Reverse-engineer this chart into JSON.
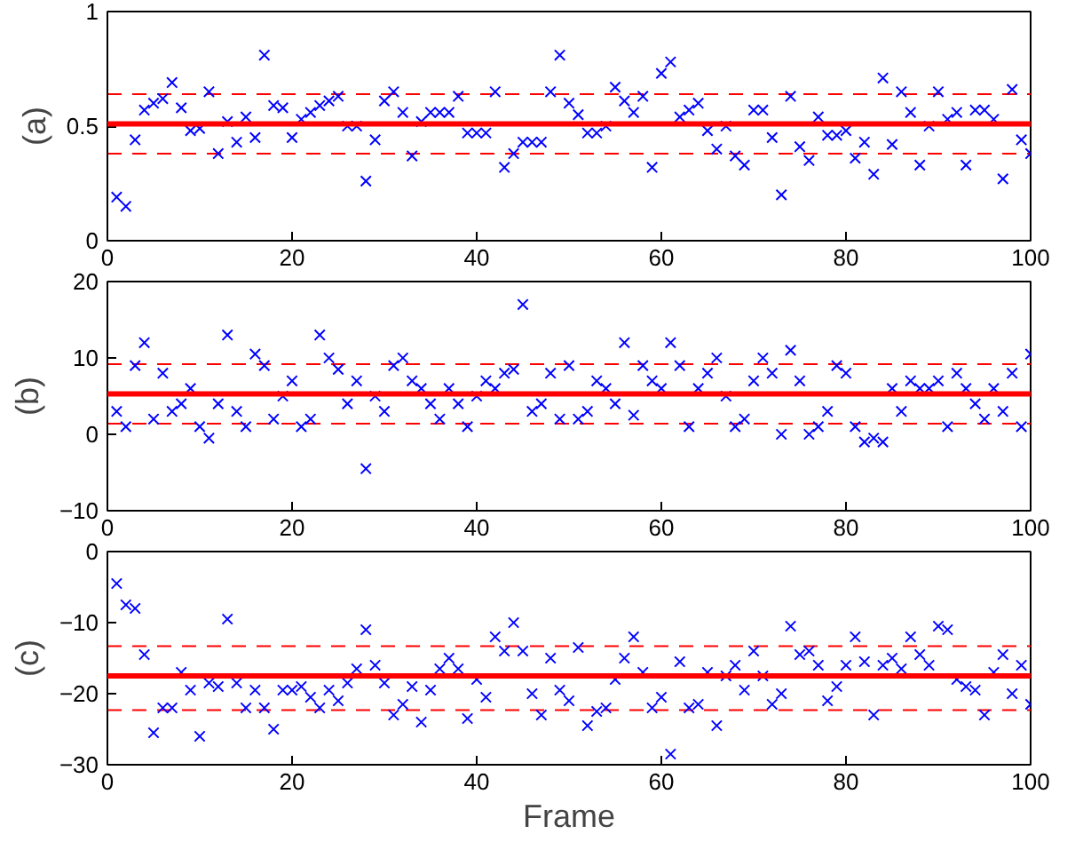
{
  "chart_data": [
    {
      "type": "scatter",
      "ylabel": "(a)",
      "xlim": [
        0,
        100
      ],
      "xticks": [
        0,
        20,
        40,
        60,
        80,
        100
      ],
      "ylim": [
        0,
        1
      ],
      "yticks": [
        0,
        0.5,
        1
      ],
      "grid": false,
      "marker": "cross",
      "x": [
        1,
        2,
        3,
        4,
        5,
        6,
        7,
        8,
        9,
        10,
        11,
        12,
        13,
        14,
        15,
        16,
        17,
        18,
        19,
        20,
        21,
        22,
        23,
        24,
        25,
        26,
        27,
        28,
        29,
        30,
        31,
        32,
        33,
        34,
        35,
        36,
        37,
        38,
        39,
        40,
        41,
        42,
        43,
        44,
        45,
        46,
        47,
        48,
        49,
        50,
        51,
        52,
        53,
        54,
        55,
        56,
        57,
        58,
        59,
        60,
        61,
        62,
        63,
        64,
        65,
        66,
        67,
        68,
        69,
        70,
        71,
        72,
        73,
        74,
        75,
        76,
        77,
        78,
        79,
        80,
        81,
        82,
        83,
        84,
        85,
        86,
        87,
        88,
        89,
        90,
        91,
        92,
        93,
        94,
        95,
        96,
        97,
        98,
        99,
        100
      ],
      "series": [
        {
          "color": "#0000ff",
          "values": [
            0.19,
            0.15,
            0.44,
            0.57,
            0.6,
            0.62,
            0.69,
            0.58,
            0.48,
            0.49,
            0.65,
            0.38,
            0.52,
            0.43,
            0.54,
            0.45,
            0.81,
            0.59,
            0.58,
            0.45,
            0.53,
            0.56,
            0.59,
            0.61,
            0.63,
            0.5,
            0.5,
            0.26,
            0.44,
            0.61,
            0.65,
            0.56,
            0.37,
            0.52,
            0.56,
            0.56,
            0.56,
            0.63,
            0.47,
            0.47,
            0.47,
            0.65,
            0.32,
            0.38,
            0.43,
            0.43,
            0.43,
            0.65,
            0.81,
            0.6,
            0.55,
            0.47,
            0.47,
            0.5,
            0.67,
            0.61,
            0.56,
            0.63,
            0.32,
            0.73,
            0.78,
            0.54,
            0.57,
            0.6,
            0.48,
            0.4,
            0.5,
            0.37,
            0.33,
            0.57,
            0.57,
            0.45,
            0.2,
            0.63,
            0.41,
            0.35,
            0.54,
            0.46,
            0.46,
            0.48,
            0.36,
            0.43,
            0.29,
            0.71,
            0.42,
            0.65,
            0.56,
            0.33,
            0.5,
            0.65,
            0.53,
            0.56,
            0.33,
            0.57,
            0.57,
            0.53,
            0.27,
            0.66,
            0.44,
            0.38
          ]
        }
      ],
      "ref_lines": [
        {
          "axis": "y",
          "value": 0.51,
          "color": "#ff0000",
          "line_style": "solid"
        },
        {
          "axis": "y",
          "value": 0.64,
          "color": "#ff0000",
          "line_style": "dashed"
        },
        {
          "axis": "y",
          "value": 0.38,
          "color": "#ff0000",
          "line_style": "dashed"
        }
      ]
    },
    {
      "type": "scatter",
      "ylabel": "(b)",
      "xlim": [
        0,
        100
      ],
      "xticks": [
        0,
        20,
        40,
        60,
        80,
        100
      ],
      "ylim": [
        -10,
        20
      ],
      "yticks": [
        -10,
        0,
        10,
        20
      ],
      "grid": false,
      "marker": "cross",
      "x": [
        1,
        2,
        3,
        4,
        5,
        6,
        7,
        8,
        9,
        10,
        11,
        12,
        13,
        14,
        15,
        16,
        17,
        18,
        19,
        20,
        21,
        22,
        23,
        24,
        25,
        26,
        27,
        28,
        29,
        30,
        31,
        32,
        33,
        34,
        35,
        36,
        37,
        38,
        39,
        40,
        41,
        42,
        43,
        44,
        45,
        46,
        47,
        48,
        49,
        50,
        51,
        52,
        53,
        54,
        55,
        56,
        57,
        58,
        59,
        60,
        61,
        62,
        63,
        64,
        65,
        66,
        67,
        68,
        69,
        70,
        71,
        72,
        73,
        74,
        75,
        76,
        77,
        78,
        79,
        80,
        81,
        82,
        83,
        84,
        85,
        86,
        87,
        88,
        89,
        90,
        91,
        92,
        93,
        94,
        95,
        96,
        97,
        98,
        99,
        100
      ],
      "series": [
        {
          "color": "#0000ff",
          "values": [
            3,
            1,
            9,
            12,
            2,
            8,
            3,
            4,
            6,
            1,
            -0.5,
            4,
            13,
            3,
            1,
            10.5,
            9,
            2,
            5,
            7,
            1,
            2,
            13,
            10,
            8.5,
            4,
            7,
            -4.5,
            5,
            3,
            9,
            10,
            7,
            6,
            4,
            2,
            6,
            4,
            1,
            5,
            7,
            6,
            8,
            8.5,
            17,
            3,
            4,
            8,
            2,
            9,
            2,
            3,
            7,
            6,
            4,
            12,
            2.5,
            9,
            7,
            6,
            12,
            9,
            1,
            6,
            8,
            10,
            5,
            1,
            2,
            7,
            10,
            8,
            0,
            11,
            7,
            0,
            1,
            3,
            9,
            8,
            1,
            -1,
            -0.5,
            -1,
            6,
            3,
            7,
            6,
            6,
            7,
            1,
            8,
            6,
            4,
            2,
            6,
            3,
            8,
            1,
            10.5
          ]
        }
      ],
      "ref_lines": [
        {
          "axis": "y",
          "value": 5.3,
          "color": "#ff0000",
          "line_style": "solid"
        },
        {
          "axis": "y",
          "value": 9.2,
          "color": "#ff0000",
          "line_style": "dashed"
        },
        {
          "axis": "y",
          "value": 1.4,
          "color": "#ff0000",
          "line_style": "dashed"
        }
      ]
    },
    {
      "type": "scatter",
      "ylabel": "(c)",
      "xlabel": "Frame",
      "xlim": [
        0,
        100
      ],
      "xticks": [
        0,
        20,
        40,
        60,
        80,
        100
      ],
      "ylim": [
        -30,
        0
      ],
      "yticks": [
        -30,
        -20,
        -10,
        0
      ],
      "grid": false,
      "marker": "cross",
      "x": [
        1,
        2,
        3,
        4,
        5,
        6,
        7,
        8,
        9,
        10,
        11,
        12,
        13,
        14,
        15,
        16,
        17,
        18,
        19,
        20,
        21,
        22,
        23,
        24,
        25,
        26,
        27,
        28,
        29,
        30,
        31,
        32,
        33,
        34,
        35,
        36,
        37,
        38,
        39,
        40,
        41,
        42,
        43,
        44,
        45,
        46,
        47,
        48,
        49,
        50,
        51,
        52,
        53,
        54,
        55,
        56,
        57,
        58,
        59,
        60,
        61,
        62,
        63,
        64,
        65,
        66,
        67,
        68,
        69,
        70,
        71,
        72,
        73,
        74,
        75,
        76,
        77,
        78,
        79,
        80,
        81,
        82,
        83,
        84,
        85,
        86,
        87,
        88,
        89,
        90,
        91,
        92,
        93,
        94,
        95,
        96,
        97,
        98,
        99,
        100
      ],
      "series": [
        {
          "color": "#0000ff",
          "values": [
            -4.5,
            -7.5,
            -8,
            -14.5,
            -25.5,
            -22,
            -22,
            -17,
            -19.5,
            -26,
            -18.5,
            -19,
            -9.5,
            -18.5,
            -22,
            -19.5,
            -22,
            -25,
            -19.5,
            -19.5,
            -19,
            -20.5,
            -22,
            -19.5,
            -21,
            -18.5,
            -16.5,
            -11,
            -16,
            -18.5,
            -23,
            -21.5,
            -19,
            -24,
            -19.5,
            -16.5,
            -15,
            -16.5,
            -23.5,
            -18,
            -20.5,
            -12,
            -14,
            -10,
            -14,
            -20,
            -23,
            -15,
            -19.5,
            -21,
            -13.5,
            -24.5,
            -22.5,
            -22,
            -18,
            -15,
            -12,
            -17,
            -22,
            -20.5,
            -28.5,
            -15.5,
            -22,
            -21.5,
            -17,
            -24.5,
            -17.5,
            -16,
            -19.5,
            -14,
            -17.5,
            -21.5,
            -20,
            -10.5,
            -14.5,
            -14,
            -16,
            -21,
            -19,
            -16,
            -12,
            -15.5,
            -23,
            -16,
            -15,
            -16.5,
            -12,
            -14.5,
            -16,
            -10.5,
            -11,
            -18,
            -19,
            -19.5,
            -23,
            -17,
            -14.5,
            -20,
            -16,
            -21.5
          ]
        }
      ],
      "ref_lines": [
        {
          "axis": "y",
          "value": -17.5,
          "color": "#ff0000",
          "line_style": "solid"
        },
        {
          "axis": "y",
          "value": -13.3,
          "color": "#ff0000",
          "line_style": "dashed"
        },
        {
          "axis": "y",
          "value": -22.3,
          "color": "#ff0000",
          "line_style": "dashed"
        }
      ]
    }
  ]
}
